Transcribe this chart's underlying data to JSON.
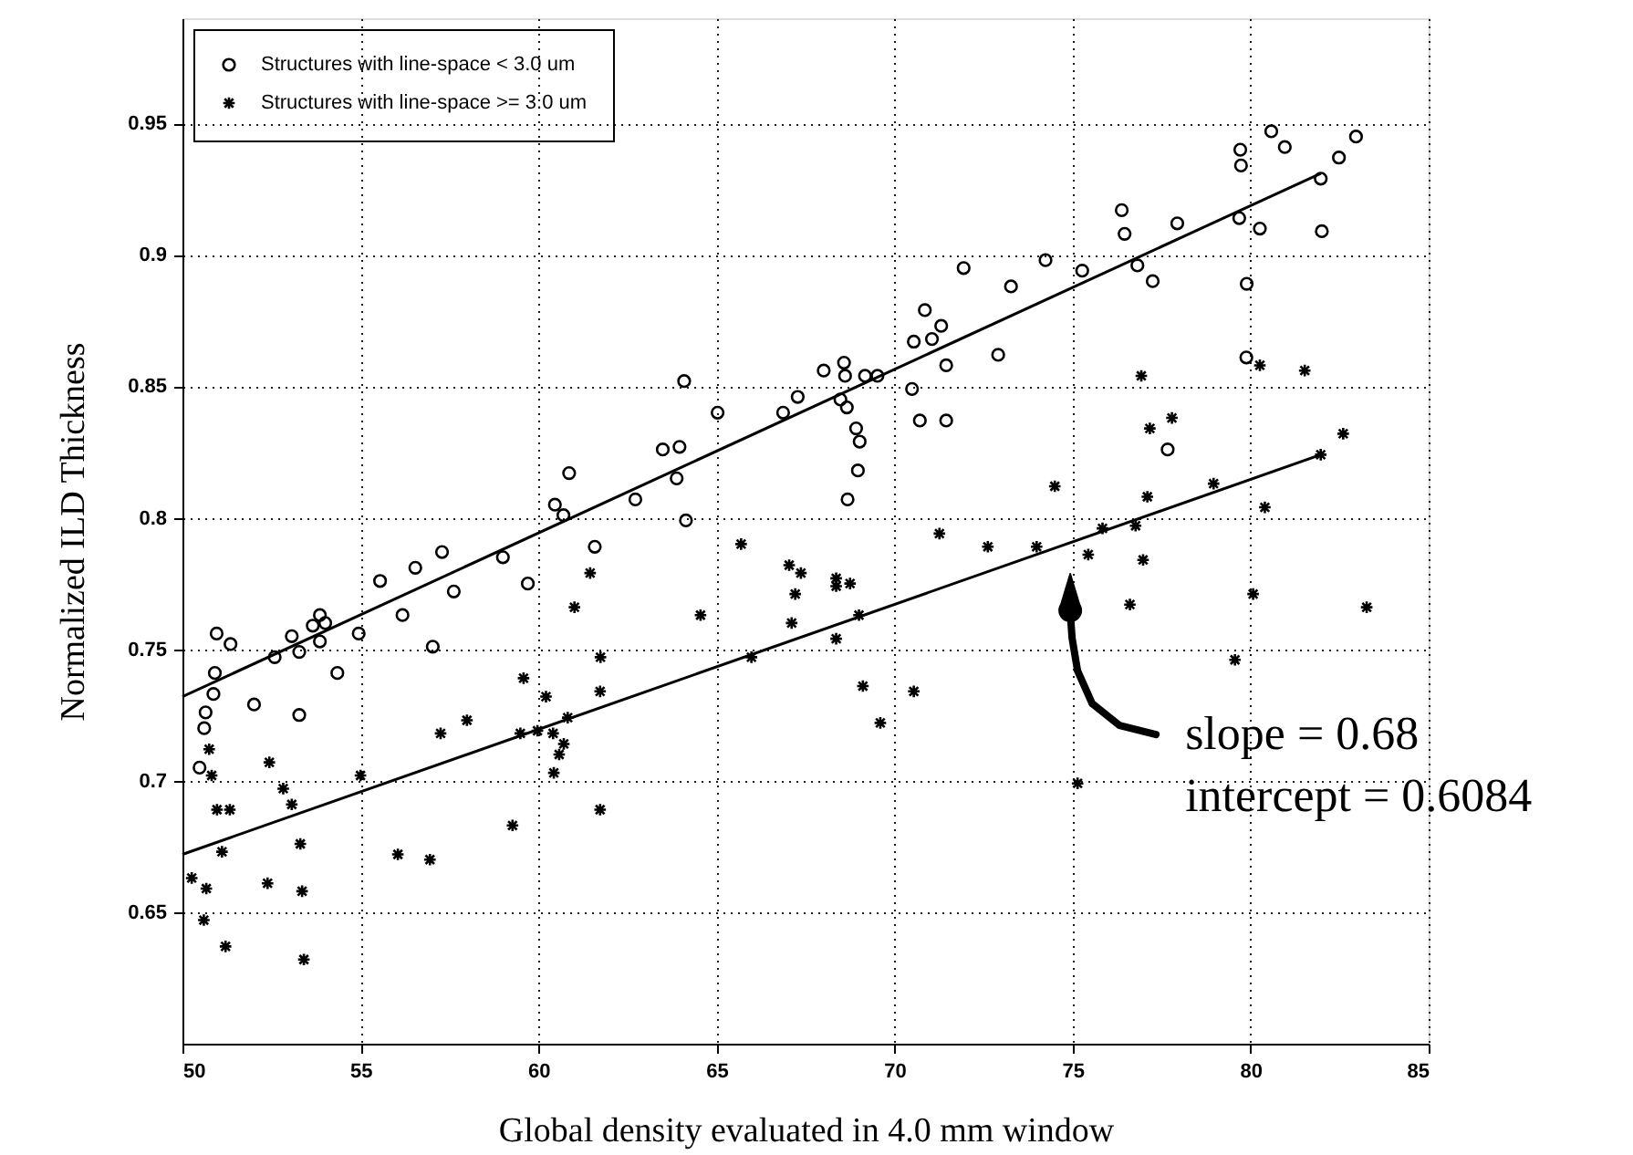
{
  "chart_data": {
    "type": "scatter",
    "xlabel": "Global density evaluated in 4.0 mm window",
    "ylabel": "Normalized ILD Thickness",
    "xlim": [
      50,
      85
    ],
    "xticks": [
      50,
      55,
      60,
      65,
      70,
      75,
      80,
      85
    ],
    "ylim": [
      0.6,
      0.99
    ],
    "yticks": [
      0.65,
      0.7,
      0.75,
      0.8,
      0.85,
      0.9,
      0.95
    ],
    "grid": true,
    "legend": "top left",
    "annotations": [
      "slope = 0.68",
      "intercept = 0.6084"
    ],
    "series": [
      {
        "name": "Structures with line-space < 3.0 um",
        "type": "scatter",
        "marker": "circle",
        "color": "#000000",
        "x": [
          57.29,
          59.0,
          56.54,
          55.55,
          59.7,
          57.62,
          61.58,
          53.86,
          53.66,
          54.01,
          53.86,
          56.18,
          54.95,
          50.96,
          51.35,
          53.07,
          52.59,
          53.28,
          57.03,
          50.91,
          54.35,
          50.87,
          52.01,
          50.65,
          50.61,
          53.28,
          50.48,
          64.09,
          65.03,
          66.87,
          67.28,
          63.49,
          63.96,
          63.88,
          60.86,
          62.72,
          60.46,
          60.7,
          64.14,
          80.58,
          80.96,
          82.96,
          79.71,
          79.73,
          82.48,
          81.97,
          76.38,
          76.46,
          77.94,
          79.68,
          80.26,
          82.0,
          74.24,
          75.27,
          71.94,
          73.27,
          76.82,
          77.25,
          79.89,
          70.85,
          71.31,
          71.05,
          70.54,
          71.45,
          72.91,
          79.88,
          68.01,
          68.58,
          68.61,
          69.17,
          69.52,
          70.49,
          68.48,
          68.66,
          68.92,
          69.02,
          70.71,
          71.45,
          77.67,
          68.97,
          68.68
        ],
        "values": [
          0.787,
          0.785,
          0.781,
          0.776,
          0.775,
          0.772,
          0.789,
          0.763,
          0.759,
          0.76,
          0.753,
          0.763,
          0.756,
          0.756,
          0.752,
          0.755,
          0.747,
          0.749,
          0.751,
          0.741,
          0.741,
          0.733,
          0.729,
          0.726,
          0.72,
          0.725,
          0.705,
          0.852,
          0.84,
          0.84,
          0.846,
          0.826,
          0.827,
          0.815,
          0.817,
          0.807,
          0.805,
          0.801,
          0.799,
          0.947,
          0.941,
          0.945,
          0.94,
          0.934,
          0.937,
          0.929,
          0.917,
          0.908,
          0.912,
          0.914,
          0.91,
          0.909,
          0.898,
          0.894,
          0.895,
          0.888,
          0.896,
          0.89,
          0.889,
          0.879,
          0.873,
          0.868,
          0.867,
          0.858,
          0.862,
          0.861,
          0.856,
          0.859,
          0.854,
          0.854,
          0.854,
          0.849,
          0.845,
          0.842,
          0.834,
          0.829,
          0.837,
          0.837,
          0.826,
          0.818,
          0.807
        ]
      },
      {
        "name": "Structures with line-space >= 3.0 um",
        "type": "scatter",
        "marker": "cross",
        "color": "#000000",
        "x": [
          65.69,
          67.04,
          67.37,
          61.45,
          67.21,
          61.01,
          64.55,
          67.11,
          61.74,
          65.98,
          59.58,
          61.73,
          60.21,
          60.82,
          57.99,
          57.25,
          59.49,
          59.97,
          60.41,
          60.71,
          60.58,
          60.43,
          50.75,
          50.82,
          55.0,
          52.44,
          52.83,
          53.07,
          50.97,
          51.33,
          61.73,
          59.27,
          51.11,
          53.31,
          56.05,
          56.95,
          50.26,
          52.39,
          50.67,
          53.36,
          50.6,
          51.21,
          53.41,
          71.26,
          72.62,
          73.99,
          75.44,
          76.98,
          75.84,
          76.77,
          68.36,
          68.36,
          68.75,
          69.0,
          68.36,
          76.61,
          80.07,
          83.26,
          69.11,
          70.54,
          69.6,
          79.56,
          75.14,
          76.93,
          80.26,
          81.52,
          77.17,
          77.79,
          82.6,
          81.97,
          74.5,
          77.1,
          78.96,
          80.4
        ],
        "values": [
          0.79,
          0.782,
          0.779,
          0.779,
          0.771,
          0.766,
          0.763,
          0.76,
          0.747,
          0.747,
          0.739,
          0.734,
          0.732,
          0.724,
          0.723,
          0.718,
          0.718,
          0.719,
          0.718,
          0.714,
          0.71,
          0.703,
          0.712,
          0.702,
          0.702,
          0.707,
          0.697,
          0.691,
          0.689,
          0.689,
          0.689,
          0.683,
          0.673,
          0.676,
          0.672,
          0.67,
          0.663,
          0.661,
          0.659,
          0.658,
          0.647,
          0.637,
          0.632,
          0.794,
          0.789,
          0.789,
          0.786,
          0.784,
          0.796,
          0.797,
          0.777,
          0.774,
          0.775,
          0.763,
          0.754,
          0.767,
          0.771,
          0.766,
          0.736,
          0.734,
          0.722,
          0.746,
          0.699,
          0.854,
          0.858,
          0.856,
          0.834,
          0.838,
          0.832,
          0.824,
          0.812,
          0.808,
          0.813,
          0.804
        ]
      },
      {
        "type": "line",
        "color": "#000000",
        "line_style": "solid",
        "x": [
          50,
          81.97
        ],
        "values": [
          0.732,
          0.931
        ]
      },
      {
        "type": "line",
        "color": "#000000",
        "line_style": "solid",
        "x": [
          50,
          81.97
        ],
        "values": [
          0.672,
          0.824
        ]
      }
    ]
  }
}
